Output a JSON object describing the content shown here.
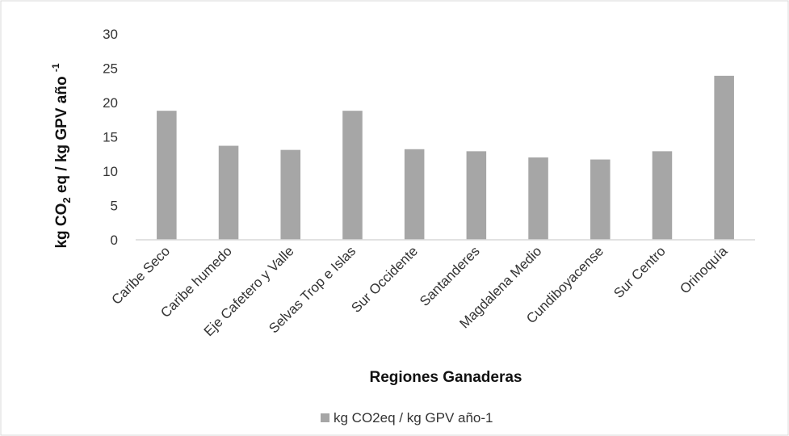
{
  "chart_data": {
    "type": "bar",
    "title": "",
    "xlabel": "Regiones Ganaderas",
    "ylabel": {
      "prefix": "kg CO",
      "sub": "2",
      "middle": " eq / kg  GPV año ",
      "sup": "-1"
    },
    "categories": [
      "Caribe Seco",
      "Caribe humedo",
      "Eje Cafetero y Valle",
      "Selvas Trop e Islas",
      "Sur Occidente",
      "Santanderes",
      "Magdalena Medio",
      "Cundiboyacense",
      "Sur Centro",
      "Orinoquía"
    ],
    "series": [
      {
        "name": "kg CO2eq / kg GPV año-1",
        "color": "#a6a6a6",
        "values": [
          18.8,
          13.7,
          13.1,
          18.8,
          13.2,
          12.9,
          12.0,
          11.7,
          12.9,
          23.9
        ]
      }
    ],
    "ylim": [
      0,
      30
    ],
    "yticks": [
      0,
      5,
      10,
      15,
      20,
      25,
      30
    ],
    "grid": false,
    "legend": "bottom-center"
  }
}
